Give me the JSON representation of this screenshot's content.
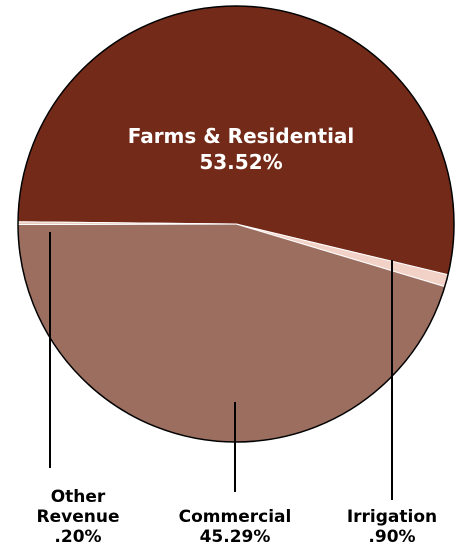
{
  "chart_data": {
    "type": "pie",
    "title": "",
    "slices": [
      {
        "name": "Farms & Residential",
        "value": 53.52,
        "label": "53.52%",
        "color": "#732A18"
      },
      {
        "name": "Irrigation",
        "value": 0.9,
        "label": ".90%",
        "color": "#F2D2C7"
      },
      {
        "name": "Commercial",
        "value": 45.29,
        "label": "45.29%",
        "color": "#9B6E5F"
      },
      {
        "name": "Other Revenue",
        "value": 0.2,
        "label": ".20%",
        "color": "#E7C8BC"
      }
    ],
    "inner_label": {
      "line1": "Farms & Residential",
      "line2": "53.52%"
    },
    "outer_labels": {
      "other": {
        "line1": "Other",
        "line2": "Revenue",
        "line3": ".20%"
      },
      "commercial": {
        "line1": "Commercial",
        "line2": "45.29%"
      },
      "irrigation": {
        "line1": "Irrigation",
        "line2": ".90%"
      }
    },
    "legend": "none",
    "grid": false
  }
}
